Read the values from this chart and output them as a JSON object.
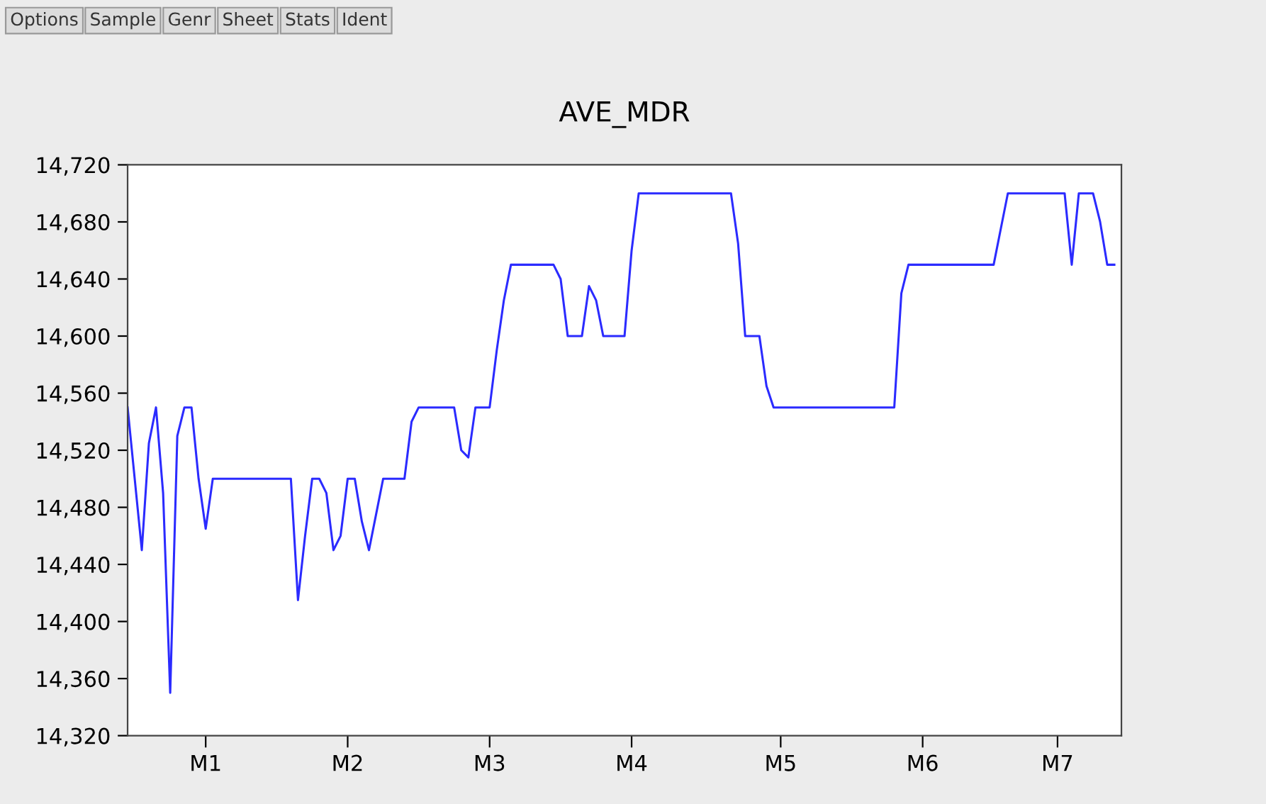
{
  "chart_data": {
    "type": "line",
    "title": "AVE_MDR",
    "annotations": [
      "Options",
      "Sample",
      "Genr",
      "Sheet",
      "Stats",
      "Ident"
    ],
    "categories": [
      null,
      null,
      null,
      null,
      null,
      null,
      null,
      null,
      null,
      null,
      null,
      "M1",
      null,
      null,
      null,
      null,
      null,
      null,
      null,
      null,
      null,
      null,
      null,
      null,
      null,
      null,
      null,
      null,
      null,
      null,
      null,
      "M2",
      null,
      null,
      null,
      null,
      null,
      null,
      null,
      null,
      null,
      null,
      null,
      null,
      null,
      null,
      null,
      null,
      null,
      null,
      null,
      "M3",
      null,
      null,
      null,
      null,
      null,
      null,
      null,
      null,
      null,
      null,
      null,
      null,
      null,
      null,
      null,
      null,
      null,
      null,
      null,
      "M4",
      null,
      null,
      null,
      null,
      null,
      null,
      null,
      null,
      null,
      null,
      null,
      null,
      null,
      null,
      null,
      null,
      null,
      null,
      null,
      null,
      "M5",
      null,
      null,
      null,
      null,
      null,
      null,
      null,
      null,
      null,
      null,
      null,
      null,
      null,
      null,
      null,
      null,
      null,
      null,
      null,
      "M6",
      null,
      null,
      null,
      null,
      null,
      null,
      null,
      null,
      null,
      null,
      null,
      null,
      null,
      null,
      null,
      null,
      null,
      null,
      "M7",
      null,
      null,
      null,
      null,
      null,
      null,
      null,
      null,
      null
    ],
    "series": [
      {
        "color": "#2b2bff",
        "values": [
          14550,
          14500,
          14450,
          14525,
          14550,
          14490,
          14350,
          14530,
          14550,
          14550,
          14500,
          14465,
          14500,
          14500,
          14500,
          14500,
          14500,
          14500,
          14500,
          14500,
          14500,
          14500,
          14500,
          14500,
          14415,
          14460,
          14500,
          14500,
          14490,
          14450,
          14460,
          14500,
          14500,
          14470,
          14450,
          14475,
          14500,
          14500,
          14500,
          14500,
          14540,
          14550,
          14550,
          14550,
          14550,
          14550,
          14550,
          14520,
          14515,
          14550,
          14550,
          14550,
          14590,
          14625,
          14650,
          14650,
          14650,
          14650,
          14650,
          14650,
          14650,
          14640,
          14600,
          14600,
          14600,
          14635,
          14625,
          14600,
          14600,
          14600,
          14600,
          14660,
          14700,
          14700,
          14700,
          14700,
          14700,
          14700,
          14700,
          14700,
          14700,
          14700,
          14700,
          14700,
          14700,
          14700,
          14665,
          14600,
          14600,
          14600,
          14565,
          14550,
          14550,
          14550,
          14550,
          14550,
          14550,
          14550,
          14550,
          14550,
          14550,
          14550,
          14550,
          14550,
          14550,
          14550,
          14550,
          14550,
          14550,
          14630,
          14650,
          14650,
          14650,
          14650,
          14650,
          14650,
          14650,
          14650,
          14650,
          14650,
          14650,
          14650,
          14650,
          14675,
          14700,
          14700,
          14700,
          14700,
          14700,
          14700,
          14700,
          14700,
          14700,
          14650,
          14700,
          14700,
          14700,
          14680,
          14650,
          14650,
          null
        ]
      }
    ],
    "ylim": [
      14320,
      14720
    ],
    "yticks": [
      {
        "value": 14320,
        "label": "14,320"
      },
      {
        "value": 14360,
        "label": "14,360"
      },
      {
        "value": 14400,
        "label": "14,400"
      },
      {
        "value": 14440,
        "label": "14,440"
      },
      {
        "value": 14480,
        "label": "14,480"
      },
      {
        "value": 14520,
        "label": "14,520"
      },
      {
        "value": 14560,
        "label": "14,560"
      },
      {
        "value": 14600,
        "label": "14,600"
      },
      {
        "value": 14640,
        "label": "14,640"
      },
      {
        "value": 14680,
        "label": "14,680"
      },
      {
        "value": 14720,
        "label": "14,720"
      }
    ],
    "grid": false,
    "legend": false,
    "marker": "none",
    "line_style": "solid"
  }
}
